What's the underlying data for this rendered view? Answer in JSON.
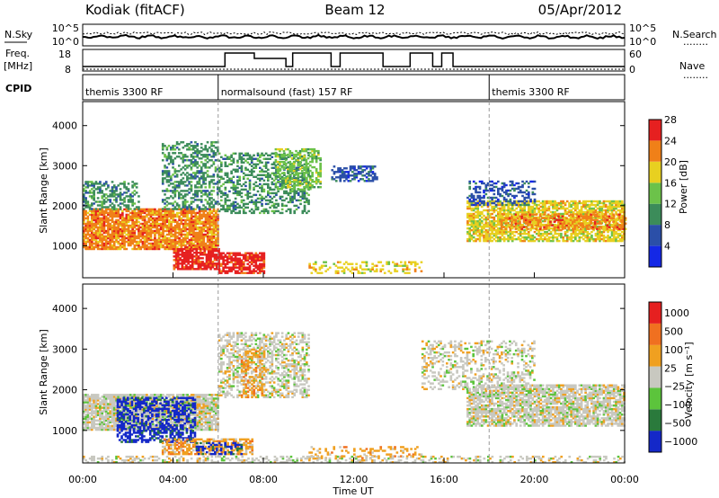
{
  "header": {
    "radar": "Kodiak (fitACF)",
    "beam": "Beam 12",
    "date": "05/Apr/2012"
  },
  "strip_labels": {
    "nsky": "N.Sky",
    "freq": "Freq.",
    "freq_unit": "[MHz]",
    "cpid": "CPID",
    "nsearch": "N.Search",
    "nave": "Nave",
    "dots": "........",
    "noise_ticks": [
      "10^5",
      "10^0"
    ],
    "noise_ticks_right": [
      "10^5",
      "10^0"
    ],
    "freq_ticks": [
      "18",
      "8"
    ],
    "nave_ticks": [
      "60",
      "0"
    ]
  },
  "cpid_segments": [
    {
      "label": "themis 3300 RF",
      "start_hour": 0,
      "end_hour": 6
    },
    {
      "label": "normalsound (fast) 157 RF",
      "start_hour": 6,
      "end_hour": 18
    },
    {
      "label": "themis 3300 RF",
      "start_hour": 18,
      "end_hour": 24
    }
  ],
  "chart_data": [
    {
      "type": "heatmap",
      "name": "power-panel",
      "ylabel": "Slant Range [km]",
      "xlabel": "Time UT",
      "xlim": [
        0,
        24
      ],
      "ylim": [
        200,
        4600
      ],
      "y_ticks": [
        "1000",
        "2000",
        "3000",
        "4000"
      ],
      "colorbar_label": "Power [dB]",
      "colorbar_ticks": [
        "4",
        "8",
        "12",
        "16",
        "20",
        "24",
        "28"
      ],
      "colors": [
        "#1428e6",
        "#2b4fa8",
        "#3c8c5a",
        "#6cc24a",
        "#e8d020",
        "#f08018",
        "#e62020"
      ],
      "regions": [
        {
          "t0": 0.0,
          "t1": 6.0,
          "r0": 900,
          "r1": 1900,
          "level": 5,
          "density": 0.85
        },
        {
          "t0": 0.0,
          "t1": 2.5,
          "r0": 1900,
          "r1": 2600,
          "level": 2,
          "density": 0.45
        },
        {
          "t0": 3.5,
          "t1": 6.0,
          "r0": 1900,
          "r1": 3600,
          "level": 2,
          "density": 0.45
        },
        {
          "t0": 4.0,
          "t1": 6.0,
          "r0": 400,
          "r1": 900,
          "level": 6,
          "density": 0.8
        },
        {
          "t0": 6.0,
          "t1": 8.0,
          "r0": 300,
          "r1": 800,
          "level": 6,
          "density": 0.7
        },
        {
          "t0": 6.0,
          "t1": 10.0,
          "r0": 1800,
          "r1": 3300,
          "level": 2,
          "density": 0.4
        },
        {
          "t0": 8.5,
          "t1": 10.5,
          "r0": 2400,
          "r1": 3400,
          "level": 3,
          "density": 0.55
        },
        {
          "t0": 11.0,
          "t1": 13.0,
          "r0": 2600,
          "r1": 3000,
          "level": 1,
          "density": 0.5
        },
        {
          "t0": 10.0,
          "t1": 15.0,
          "r0": 300,
          "r1": 600,
          "level": 4,
          "density": 0.3
        },
        {
          "t0": 17.0,
          "t1": 24.0,
          "r0": 1100,
          "r1": 2100,
          "level": 4,
          "density": 0.7
        },
        {
          "t0": 18.5,
          "t1": 24.0,
          "r0": 1400,
          "r1": 1800,
          "level": 5,
          "density": 0.55
        },
        {
          "t0": 17.0,
          "t1": 20.0,
          "r0": 2000,
          "r1": 2600,
          "level": 1,
          "density": 0.4
        }
      ]
    },
    {
      "type": "heatmap",
      "name": "velocity-panel",
      "ylabel": "Slant Range [km]",
      "xlabel": "Time UT",
      "xlim": [
        0,
        24
      ],
      "ylim": [
        200,
        4600
      ],
      "y_ticks": [
        "1000",
        "2000",
        "3000",
        "4000"
      ],
      "x_ticks": [
        "00:00",
        "04:00",
        "08:00",
        "12:00",
        "16:00",
        "20:00",
        "00:00"
      ],
      "colorbar_label": "Velocity [m s⁻¹]",
      "colorbar_ticks": [
        "1000",
        "500",
        "100",
        "25",
        "−25",
        "−100",
        "−500",
        "−1000"
      ],
      "colors": [
        "#1428c8",
        "#2a7a3c",
        "#5cc43c",
        "#c8c8c0",
        "#f0a020",
        "#f07020",
        "#e62020"
      ],
      "regions": [
        {
          "t0": 0.0,
          "t1": 6.0,
          "r0": 1000,
          "r1": 1900,
          "level": 3,
          "density": 0.85
        },
        {
          "t0": 1.5,
          "t1": 5.0,
          "r0": 700,
          "r1": 1800,
          "level": 0,
          "density": 0.55
        },
        {
          "t0": 3.5,
          "t1": 7.5,
          "r0": 400,
          "r1": 800,
          "level": 4,
          "density": 0.6
        },
        {
          "t0": 5.0,
          "t1": 7.0,
          "r0": 400,
          "r1": 700,
          "level": 0,
          "density": 0.4
        },
        {
          "t0": 6.0,
          "t1": 10.0,
          "r0": 1800,
          "r1": 3400,
          "level": 3,
          "density": 0.45
        },
        {
          "t0": 7.0,
          "t1": 8.0,
          "r0": 1800,
          "r1": 3000,
          "level": 4,
          "density": 0.4
        },
        {
          "t0": 10.0,
          "t1": 15.0,
          "r0": 300,
          "r1": 600,
          "level": 4,
          "density": 0.3
        },
        {
          "t0": 17.0,
          "t1": 24.0,
          "r0": 1100,
          "r1": 2100,
          "level": 3,
          "density": 0.75
        },
        {
          "t0": 15.0,
          "t1": 20.0,
          "r0": 2000,
          "r1": 3200,
          "level": 3,
          "density": 0.35
        },
        {
          "t0": 0.0,
          "t1": 24.0,
          "r0": 200,
          "r1": 350,
          "level": 3,
          "density": 0.35
        }
      ]
    }
  ]
}
